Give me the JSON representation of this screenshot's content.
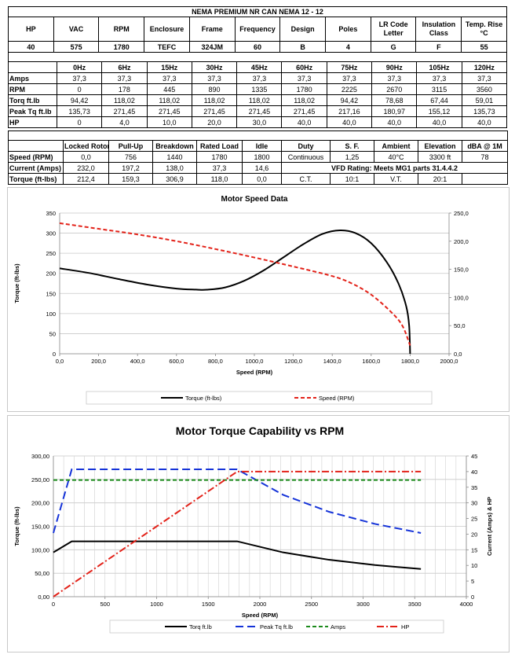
{
  "spec": {
    "title": "NEMA PREMIUM NR CAN NEMA 12 - 12",
    "headers": [
      "HP",
      "VAC",
      "RPM",
      "Enclosure",
      "Frame",
      "Frequency",
      "Design",
      "Poles",
      "LR Code Letter",
      "Insulation Class",
      "Temp. Rise °C"
    ],
    "values": [
      "40",
      "575",
      "1780",
      "TEFC",
      "324JM",
      "60",
      "B",
      "4",
      "G",
      "F",
      "55"
    ]
  },
  "freq_table": {
    "columns": [
      "0Hz",
      "6Hz",
      "15Hz",
      "30Hz",
      "45Hz",
      "60Hz",
      "75Hz",
      "90Hz",
      "105Hz",
      "120Hz"
    ],
    "rows": [
      {
        "label": "Amps",
        "values": [
          "37,3",
          "37,3",
          "37,3",
          "37,3",
          "37,3",
          "37,3",
          "37,3",
          "37,3",
          "37,3",
          "37,3"
        ]
      },
      {
        "label": "RPM",
        "values": [
          "0",
          "178",
          "445",
          "890",
          "1335",
          "1780",
          "2225",
          "2670",
          "3115",
          "3560"
        ]
      },
      {
        "label": "Torq ft.lb",
        "values": [
          "94,42",
          "118,02",
          "118,02",
          "118,02",
          "118,02",
          "118,02",
          "94,42",
          "78,68",
          "67,44",
          "59,01"
        ]
      },
      {
        "label": "Peak Tq ft.lb",
        "values": [
          "135,73",
          "271,45",
          "271,45",
          "271,45",
          "271,45",
          "271,45",
          "217,16",
          "180,97",
          "155,12",
          "135,73"
        ]
      },
      {
        "label": "HP",
        "values": [
          "0",
          "4,0",
          "10,0",
          "20,0",
          "30,0",
          "40,0",
          "40,0",
          "40,0",
          "40,0",
          "40,0"
        ]
      }
    ]
  },
  "perf_table": {
    "headers": [
      "Locked Rotor",
      "Pull-Up",
      "Breakdown",
      "Rated Load",
      "Idle"
    ],
    "rows": [
      {
        "label": "Speed (RPM)",
        "values": [
          "0,0",
          "756",
          "1440",
          "1780",
          "1800"
        ]
      },
      {
        "label": "Current (Amps)",
        "values": [
          "232,0",
          "197,2",
          "138,0",
          "37,3",
          "14,6"
        ]
      },
      {
        "label": "Torque (ft-lbs)",
        "values": [
          "212,4",
          "159,3",
          "306,9",
          "118,0",
          "0,0"
        ]
      }
    ],
    "right_headers": [
      "Duty",
      "S. F.",
      "Ambient",
      "Elevation",
      "dBA @ 1M"
    ],
    "right_values": [
      "Continuous",
      "1,25",
      "40°C",
      "3300 ft",
      "78"
    ],
    "vfd_rating": "VFD Rating: Meets MG1 parts 31.4.4.2",
    "ratio_values": [
      "C.T.",
      "10:1",
      "V.T.",
      "20:1"
    ]
  },
  "chart_data": [
    {
      "type": "line",
      "title": "Motor Speed Data",
      "xlabel": "Speed (RPM)",
      "ylabel": "Torque (ft-lbs)",
      "xlim": [
        0,
        2000
      ],
      "ylim": [
        0,
        350
      ],
      "y2lim": [
        0,
        250
      ],
      "x_ticks": [
        "0,0",
        "200,0",
        "400,0",
        "600,0",
        "800,0",
        "1000,0",
        "1200,0",
        "1400,0",
        "1600,0",
        "1800,0",
        "2000,0"
      ],
      "y_ticks": [
        "0",
        "50",
        "100",
        "150",
        "200",
        "250",
        "300",
        "350"
      ],
      "y2_ticks": [
        "0,0",
        "50,0",
        "100,0",
        "150,0",
        "200,0",
        "250,0"
      ],
      "series": [
        {
          "name": "Torque (ft-lbs)",
          "axis": "left",
          "color": "#000000",
          "dash": "none",
          "x": [
            0,
            150,
            300,
            450,
            600,
            700,
            756,
            850,
            950,
            1050,
            1150,
            1250,
            1350,
            1440,
            1520,
            1600,
            1680,
            1740,
            1780,
            1795,
            1800
          ],
          "y": [
            212.4,
            201,
            186,
            172,
            162,
            159.5,
            159.3,
            165,
            182,
            208,
            240,
            272,
            298,
            306.9,
            300,
            275,
            228,
            175,
            118,
            70,
            0
          ]
        },
        {
          "name": "Speed (RPM)",
          "axis": "right",
          "color": "#e32219",
          "dash": "dash",
          "x": [
            0,
            200,
            400,
            600,
            800,
            1000,
            1200,
            1400,
            1500,
            1600,
            1700,
            1760,
            1800
          ],
          "y": [
            232,
            222,
            212,
            200,
            186,
            171,
            155,
            138,
            125,
            105,
            75,
            50,
            14.6
          ]
        }
      ]
    },
    {
      "type": "line",
      "title": "Motor Torque Capability vs RPM",
      "xlabel": "Speed (RPM)",
      "ylabel": "Torque (ft-lbs)",
      "y2label": "Current (Amps) & HP",
      "xlim": [
        0,
        4000
      ],
      "ylim": [
        0,
        300
      ],
      "y2lim": [
        0,
        45
      ],
      "x_ticks": [
        "0",
        "500",
        "1000",
        "1500",
        "2000",
        "2500",
        "3000",
        "3500",
        "4000"
      ],
      "y_ticks": [
        "0,00",
        "50,00",
        "100,00",
        "150,00",
        "200,00",
        "250,00",
        "300,00"
      ],
      "y2_ticks": [
        "0",
        "5",
        "10",
        "15",
        "20",
        "25",
        "30",
        "35",
        "40",
        "45"
      ],
      "series": [
        {
          "name": "Torq ft.lb",
          "axis": "left",
          "color": "#000000",
          "dash": "none",
          "x": [
            0,
            178,
            445,
            890,
            1335,
            1780,
            2225,
            2670,
            3115,
            3560
          ],
          "y": [
            94.42,
            118.02,
            118.02,
            118.02,
            118.02,
            118.02,
            94.42,
            78.68,
            67.44,
            59.01
          ]
        },
        {
          "name": "Peak Tq ft.lb",
          "axis": "left",
          "color": "#1533d8",
          "dash": "longdash",
          "x": [
            0,
            178,
            445,
            890,
            1335,
            1780,
            2225,
            2670,
            3115,
            3560
          ],
          "y": [
            135.73,
            271.45,
            271.45,
            271.45,
            271.45,
            271.45,
            217.16,
            180.97,
            155.12,
            135.73
          ]
        },
        {
          "name": "Amps",
          "axis": "right",
          "color": "#1c8a1c",
          "dash": "dash",
          "x": [
            0,
            178,
            445,
            890,
            1335,
            1780,
            2225,
            2670,
            3115,
            3560
          ],
          "y": [
            37.3,
            37.3,
            37.3,
            37.3,
            37.3,
            37.3,
            37.3,
            37.3,
            37.3,
            37.3
          ]
        },
        {
          "name": "HP",
          "axis": "right",
          "color": "#e32219",
          "dash": "dashdot",
          "x": [
            0,
            178,
            445,
            890,
            1335,
            1780,
            2225,
            2670,
            3115,
            3560
          ],
          "y": [
            0,
            4,
            10,
            20,
            30,
            40,
            40,
            40,
            40,
            40
          ]
        }
      ]
    }
  ]
}
